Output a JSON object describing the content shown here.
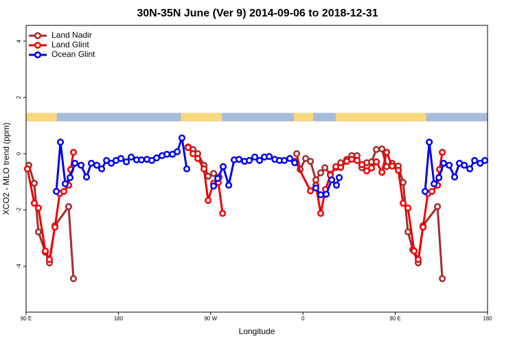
{
  "chart_data": {
    "type": "line",
    "title": "30N-35N June (Ver 9)   2014-09-06 to 2018-12-31",
    "x_label": "Longitude",
    "y_label": "XCO2 - MLO trend (ppm)",
    "xlim": [
      90,
      540
    ],
    "ylim": [
      -5.63,
      4.56
    ],
    "xticks": [
      {
        "value": 90,
        "label": "90 E"
      },
      180,
      {
        "value": 270,
        "label": "90 W"
      },
      {
        "value": 360,
        "label": "0"
      },
      {
        "value": 450,
        "label": "90 E"
      },
      {
        "value": 540,
        "label": "180"
      }
    ],
    "yticks": [
      -4,
      -2,
      0,
      2,
      4
    ],
    "legend": "top-left",
    "land_mask": {
      "band": [
        1.15,
        1.45
      ],
      "ocean_color": "#a7bbdb",
      "land_color": "#f9d77e",
      "land": [
        [
          90,
          120
        ],
        [
          241,
          281
        ],
        [
          351,
          370
        ],
        [
          392,
          480
        ]
      ]
    },
    "series": [
      {
        "name": "Land Nadir",
        "color": "#a52a2a",
        "x": [
          92.7,
          98,
          102,
          108.8,
          112.8,
          118.1,
          131.5,
          136.2,
          200,
          248,
          252.8,
          257.4,
          263.5,
          267.5,
          272.9,
          278.2,
          320,
          353.9,
          357.3,
          362.6,
          367.3,
          372.6,
          377.3,
          381.4,
          386.7,
          392,
          396.8,
          402.8,
          407.5,
          412.8,
          417.5,
          422.2,
          426.9,
          431.6,
          437,
          441.6,
          447,
          453,
          457.7,
          462.4,
          467.1,
          472.4,
          477.1,
          491.2,
          495.9
        ],
        "values": [
          -0.41,
          -1.05,
          -2.78,
          -3.5,
          -3.88,
          -2.56,
          -1.88,
          -4.44,
          null,
          0.24,
          0.15,
          0.0,
          -0.41,
          -0.8,
          -0.7,
          -0.83,
          null,
          0.0,
          -0.56,
          -0.17,
          -0.27,
          -0.93,
          -0.68,
          -0.5,
          -0.73,
          -0.49,
          -0.32,
          -0.2,
          -0.07,
          -0.07,
          -0.5,
          -0.32,
          -0.29,
          0.15,
          0.17,
          -0.46,
          -0.34,
          -0.44,
          -1.02,
          -2.78,
          -3.41,
          -3.88,
          -2.56,
          -1.88,
          -4.44
        ]
      },
      {
        "name": "Land Glint",
        "color": "#ee0000",
        "x": [
          91.3,
          98,
          102,
          108.8,
          112.8,
          118.1,
          122.8,
          126.8,
          131.5,
          133.5,
          136.2,
          200,
          248,
          252.8,
          257.4,
          263.5,
          267.5,
          272.9,
          277.5,
          281.6,
          320,
          352.6,
          367.3,
          372.6,
          377.3,
          382,
          386.7,
          392,
          396.8,
          402.8,
          407.5,
          412.8,
          417.5,
          422.2,
          426.9,
          431.6,
          437,
          441.6,
          447,
          453,
          457.7,
          462.4,
          468.4,
          472.4,
          477.1,
          481.8,
          485.8,
          491.2,
          493.2,
          495.9
        ],
        "values": [
          -0.54,
          -1.76,
          -1.93,
          -3.46,
          -3.76,
          -2.61,
          -1.41,
          -1.34,
          -1.12,
          -0.56,
          0.05,
          null,
          0.22,
          0.0,
          -0.17,
          -0.54,
          -1.66,
          -1.05,
          -1.02,
          -2.12,
          null,
          -0.27,
          -1.32,
          -1.12,
          -2.12,
          -1.27,
          -0.76,
          -0.46,
          -0.49,
          -0.27,
          -0.2,
          -0.24,
          -0.39,
          -0.61,
          -0.51,
          -0.29,
          -0.66,
          0.05,
          -0.44,
          -0.59,
          -1.76,
          -1.93,
          -3.46,
          -3.76,
          -2.61,
          -1.41,
          -1.34,
          -1.12,
          -0.56,
          0.05
        ]
      },
      {
        "name": "Ocean Glint",
        "color": "#0000ee",
        "x": [
          119.5,
          123.5,
          128.2,
          132.9,
          137.6,
          143.6,
          148.9,
          153.6,
          159,
          163.7,
          168.4,
          173.1,
          177.7,
          182.4,
          187.8,
          192.5,
          197.8,
          202.5,
          207.9,
          212.6,
          217.3,
          222.6,
          227.3,
          232.7,
          237.4,
          242,
          246.7,
          260,
          272.9,
          276.9,
          282.2,
          287.6,
          292.9,
          297.6,
          303,
          307.7,
          313,
          317.7,
          322.4,
          327.1,
          332.5,
          337.2,
          341.8,
          347.2,
          351.9,
          362,
          372.6,
          377.3,
          382.7,
          388,
          392.7,
          395.4,
          440,
          479.1,
          483.2,
          487.9,
          492.6,
          497.2,
          502.6,
          507.9,
          512.6,
          517.3,
          522.7,
          527.4,
          532.8,
          537.4
        ],
        "values": [
          -1.34,
          0.41,
          -1.07,
          -0.85,
          -0.34,
          -0.41,
          -0.83,
          -0.34,
          -0.41,
          -0.54,
          -0.24,
          -0.34,
          -0.24,
          -0.17,
          -0.29,
          -0.12,
          -0.22,
          -0.22,
          -0.2,
          -0.24,
          -0.15,
          -0.07,
          -0.02,
          -0.02,
          0.07,
          0.56,
          -0.54,
          null,
          -1.15,
          -0.88,
          -0.46,
          -1.12,
          -0.22,
          -0.2,
          -0.27,
          -0.24,
          -0.12,
          -0.24,
          -0.12,
          -0.1,
          -0.2,
          -0.24,
          -0.24,
          -0.17,
          -0.32,
          null,
          -1.22,
          -1.46,
          -1.44,
          -0.93,
          -1.12,
          -0.85,
          null,
          -1.34,
          0.41,
          -1.07,
          -0.85,
          -0.34,
          -0.41,
          -0.83,
          -0.34,
          -0.41,
          -0.54,
          -0.24,
          -0.34,
          -0.24
        ]
      }
    ]
  }
}
